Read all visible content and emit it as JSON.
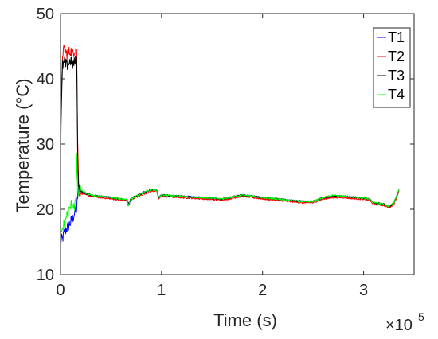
{
  "chart_data": {
    "type": "line",
    "title": "",
    "xlabel": "Time (s)",
    "ylabel": "Temperature (°C)",
    "x_multiplier_label": "×10",
    "x_multiplier_exponent": "5",
    "xlim": [
      0,
      3.5
    ],
    "ylim": [
      10,
      50
    ],
    "x_ticks": [
      0,
      1,
      2,
      3
    ],
    "x_tick_labels": [
      "0",
      "1",
      "2",
      "3"
    ],
    "y_ticks": [
      10,
      20,
      30,
      40,
      50
    ],
    "y_tick_labels": [
      "10",
      "20",
      "30",
      "40",
      "50"
    ],
    "grid": false,
    "legend_position": "top-right",
    "x_unit_scale": 100000,
    "series": [
      {
        "name": "T1",
        "color": "#0000ff",
        "x": [
          0,
          0.02,
          0.04,
          0.06,
          0.08,
          0.1,
          0.12,
          0.14,
          0.16,
          0.17,
          0.175,
          0.18,
          0.2,
          0.25,
          0.3,
          0.4,
          0.5,
          0.6,
          0.66,
          0.67,
          0.7,
          0.8,
          0.9,
          0.95,
          0.97,
          1.0,
          1.2,
          1.4,
          1.6,
          1.8,
          2.0,
          2.2,
          2.4,
          2.5,
          2.6,
          2.7,
          2.8,
          3.0,
          3.05,
          3.1,
          3.2,
          3.25,
          3.3,
          3.35
        ],
        "values": [
          15.0,
          15.5,
          16.5,
          17.0,
          17.5,
          18.0,
          18.5,
          19.5,
          20.0,
          22.0,
          23.5,
          23.0,
          22.5,
          22.5,
          22.0,
          22.0,
          21.8,
          21.5,
          21.5,
          20.5,
          21.5,
          22.5,
          23.0,
          23.0,
          21.8,
          22.2,
          22.0,
          21.8,
          21.5,
          22.2,
          21.8,
          21.5,
          21.2,
          21.2,
          21.8,
          22.0,
          22.0,
          21.7,
          21.6,
          21.0,
          20.8,
          20.3,
          21.0,
          23.0
        ]
      },
      {
        "name": "T2",
        "color": "#ff0000",
        "x": [
          0,
          0.005,
          0.02,
          0.04,
          0.06,
          0.08,
          0.1,
          0.12,
          0.14,
          0.16,
          0.17,
          0.18,
          0.2,
          0.25,
          0.3,
          0.4,
          0.5,
          0.6,
          0.66,
          0.67,
          0.7,
          0.8,
          0.9,
          0.95,
          0.97,
          1.0,
          1.2,
          1.4,
          1.6,
          1.8,
          2.0,
          2.2,
          2.4,
          2.5,
          2.6,
          2.7,
          2.8,
          3.0,
          3.05,
          3.1,
          3.2,
          3.25,
          3.3,
          3.35
        ],
        "values": [
          27.0,
          35.0,
          44.0,
          44.5,
          43.8,
          44.0,
          44.3,
          43.8,
          44.5,
          44.8,
          30.0,
          24.0,
          22.5,
          22.2,
          22.0,
          21.8,
          21.6,
          21.4,
          21.3,
          20.8,
          21.5,
          22.2,
          22.8,
          22.8,
          21.6,
          22.0,
          21.8,
          21.6,
          21.4,
          22.0,
          21.6,
          21.3,
          21.0,
          21.0,
          21.6,
          21.8,
          21.8,
          21.5,
          21.4,
          20.8,
          20.6,
          20.2,
          20.8,
          22.8
        ]
      },
      {
        "name": "T3",
        "color": "#000000",
        "x": [
          0,
          0.005,
          0.02,
          0.04,
          0.06,
          0.08,
          0.1,
          0.12,
          0.14,
          0.16,
          0.17,
          0.18,
          0.2,
          0.25,
          0.3,
          0.4,
          0.5,
          0.6,
          0.66,
          0.67,
          0.7,
          0.8,
          0.9,
          0.95,
          0.97,
          1.0,
          1.2,
          1.4,
          1.6,
          1.8,
          2.0,
          2.2,
          2.4,
          2.5,
          2.6,
          2.7,
          2.8,
          3.0,
          3.05,
          3.1,
          3.2,
          3.25,
          3.3,
          3.35
        ],
        "values": [
          26.0,
          33.0,
          42.0,
          42.5,
          42.0,
          42.3,
          42.8,
          42.2,
          42.5,
          43.0,
          28.0,
          23.5,
          22.8,
          22.4,
          22.2,
          22.0,
          21.8,
          21.6,
          21.5,
          20.8,
          21.7,
          22.4,
          23.0,
          23.0,
          21.8,
          22.2,
          22.0,
          21.8,
          21.6,
          22.2,
          21.8,
          21.5,
          21.2,
          21.2,
          21.8,
          22.0,
          22.0,
          21.7,
          21.6,
          21.0,
          20.8,
          20.4,
          21.0,
          23.0
        ]
      },
      {
        "name": "T4",
        "color": "#00ff00",
        "x": [
          0,
          0.02,
          0.04,
          0.06,
          0.08,
          0.1,
          0.12,
          0.14,
          0.155,
          0.16,
          0.17,
          0.18,
          0.2,
          0.25,
          0.3,
          0.4,
          0.5,
          0.6,
          0.66,
          0.67,
          0.7,
          0.8,
          0.9,
          0.95,
          0.97,
          1.0,
          1.2,
          1.4,
          1.6,
          1.8,
          2.0,
          2.2,
          2.4,
          2.5,
          2.6,
          2.7,
          2.8,
          3.0,
          3.05,
          3.1,
          3.2,
          3.25,
          3.3,
          3.35
        ],
        "values": [
          16.0,
          17.0,
          18.0,
          19.0,
          19.5,
          20.5,
          21.0,
          20.5,
          22.0,
          29.0,
          23.0,
          22.5,
          23.0,
          22.5,
          22.2,
          22.0,
          21.8,
          21.6,
          21.5,
          20.6,
          21.6,
          22.4,
          23.0,
          23.0,
          21.8,
          22.2,
          22.0,
          21.8,
          21.6,
          22.2,
          21.8,
          21.5,
          21.2,
          21.2,
          21.8,
          22.2,
          22.0,
          21.7,
          21.6,
          21.0,
          20.8,
          20.4,
          21.0,
          23.0
        ]
      }
    ]
  }
}
